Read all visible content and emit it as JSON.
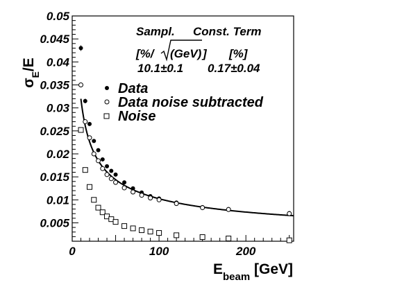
{
  "chart_data": {
    "type": "scatter",
    "title": "",
    "xlabel_main": "E",
    "xlabel_sub": "beam",
    "xlabel_unit": " [GeV]",
    "ylabel_sigma": "σ",
    "ylabel_sub": "E",
    "ylabel_tail": "/E",
    "xlim": [
      0,
      255
    ],
    "ylim": [
      0.001,
      0.05
    ],
    "x_ticks": [
      {
        "value": 0,
        "label": "0"
      },
      {
        "value": 100,
        "label": "100"
      },
      {
        "value": 200,
        "label": "200"
      }
    ],
    "y_ticks": [
      {
        "value": 0.005,
        "label": "0.005"
      },
      {
        "value": 0.01,
        "label": "0.01"
      },
      {
        "value": 0.015,
        "label": "0.015"
      },
      {
        "value": 0.02,
        "label": "0.02"
      },
      {
        "value": 0.025,
        "label": "0.025"
      },
      {
        "value": 0.03,
        "label": "0.03"
      },
      {
        "value": 0.035,
        "label": "0.035"
      },
      {
        "value": 0.04,
        "label": "0.04"
      },
      {
        "value": 0.045,
        "label": "0.045"
      },
      {
        "value": 0.05,
        "label": "0.05"
      }
    ],
    "grid": false,
    "legend_position": "upper-middle",
    "annotation": {
      "col1_header": "Sampl.",
      "col2_header": "Const. Term",
      "col1_unit_prefix": "[%/",
      "col1_unit_radicand": "(GeV)",
      "col1_unit_suffix": "]",
      "col2_unit": "[%]",
      "col1_value": "10.1±0.1",
      "col2_value": "0.17±0.04"
    },
    "series": [
      {
        "name": "Data",
        "marker": "filled-circle",
        "points": [
          {
            "x": 10,
            "y": 0.043,
            "err": 0.0006
          },
          {
            "x": 15,
            "y": 0.0315,
            "err": 0.0005
          },
          {
            "x": 20,
            "y": 0.0265
          },
          {
            "x": 25,
            "y": 0.0228
          },
          {
            "x": 30,
            "y": 0.0208
          },
          {
            "x": 35,
            "y": 0.0188
          },
          {
            "x": 40,
            "y": 0.0173
          },
          {
            "x": 45,
            "y": 0.0163
          },
          {
            "x": 50,
            "y": 0.0155
          },
          {
            "x": 60,
            "y": 0.0138
          },
          {
            "x": 70,
            "y": 0.0125
          },
          {
            "x": 80,
            "y": 0.0116
          },
          {
            "x": 90,
            "y": 0.0108
          },
          {
            "x": 100,
            "y": 0.0103
          },
          {
            "x": 120,
            "y": 0.0094
          },
          {
            "x": 150,
            "y": 0.0084
          },
          {
            "x": 180,
            "y": 0.008
          },
          {
            "x": 250,
            "y": 0.0071
          }
        ]
      },
      {
        "name": "Data noise subtracted",
        "marker": "open-circle",
        "points": [
          {
            "x": 10,
            "y": 0.035,
            "err": 0.0005
          },
          {
            "x": 15,
            "y": 0.027
          },
          {
            "x": 20,
            "y": 0.0235
          },
          {
            "x": 25,
            "y": 0.02
          },
          {
            "x": 30,
            "y": 0.0185
          },
          {
            "x": 35,
            "y": 0.0168
          },
          {
            "x": 40,
            "y": 0.0155
          },
          {
            "x": 45,
            "y": 0.0146
          },
          {
            "x": 50,
            "y": 0.0138
          },
          {
            "x": 60,
            "y": 0.0126
          },
          {
            "x": 70,
            "y": 0.0117
          },
          {
            "x": 80,
            "y": 0.011
          },
          {
            "x": 90,
            "y": 0.0104
          },
          {
            "x": 100,
            "y": 0.01
          },
          {
            "x": 120,
            "y": 0.0092
          },
          {
            "x": 150,
            "y": 0.0083
          },
          {
            "x": 180,
            "y": 0.0079
          },
          {
            "x": 250,
            "y": 0.007
          }
        ]
      },
      {
        "name": "Noise",
        "marker": "open-square",
        "points": [
          {
            "x": 10,
            "y": 0.0252
          },
          {
            "x": 15,
            "y": 0.0165
          },
          {
            "x": 20,
            "y": 0.0128
          },
          {
            "x": 25,
            "y": 0.01
          },
          {
            "x": 30,
            "y": 0.0083
          },
          {
            "x": 35,
            "y": 0.0073
          },
          {
            "x": 40,
            "y": 0.0064
          },
          {
            "x": 45,
            "y": 0.0058
          },
          {
            "x": 50,
            "y": 0.0052
          },
          {
            "x": 60,
            "y": 0.0043
          },
          {
            "x": 70,
            "y": 0.0038
          },
          {
            "x": 80,
            "y": 0.0034
          },
          {
            "x": 90,
            "y": 0.0031
          },
          {
            "x": 100,
            "y": 0.0028
          },
          {
            "x": 120,
            "y": 0.0023
          },
          {
            "x": 150,
            "y": 0.0019
          },
          {
            "x": 180,
            "y": 0.0016
          },
          {
            "x": 250,
            "y": 0.0012
          }
        ]
      }
    ],
    "fit": {
      "sampling_percent": 10.1,
      "constant_percent": 0.17,
      "x_range": [
        10,
        255
      ]
    }
  }
}
